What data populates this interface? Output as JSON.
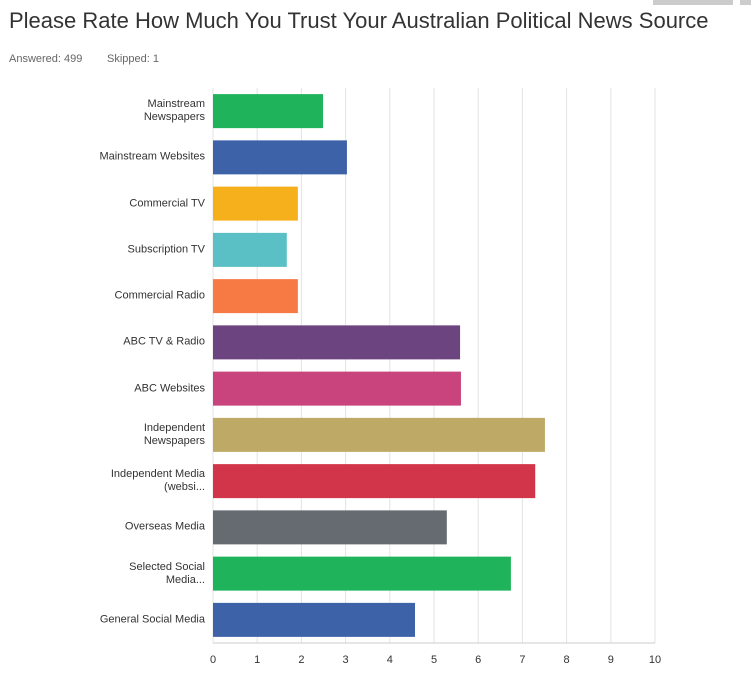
{
  "chart_data": {
    "type": "barh",
    "title": "Please Rate How Much You Trust Your Australian Political News Source",
    "annotations": [
      "Answered: 499",
      "Skipped: 1"
    ],
    "categories": [
      "Mainstream Newspapers",
      "Mainstream Websites",
      "Commercial TV",
      "Subscription TV",
      "Commercial Radio",
      "ABC TV & Radio",
      "ABC Websites",
      "Independent Newspapers",
      "Independent Media (websi...",
      "Overseas Media",
      "Selected Social Media...",
      "General Social Media"
    ],
    "values": [
      2.49,
      3.03,
      1.92,
      1.67,
      1.92,
      5.59,
      5.61,
      7.51,
      7.29,
      5.29,
      6.74,
      4.57
    ],
    "colors": [
      "#1fb35c",
      "#3d62a8",
      "#f5b01b",
      "#5bc0c5",
      "#f77a45",
      "#6c4580",
      "#c9437d",
      "#bea966",
      "#d2354a",
      "#656b70",
      "#1fb35c",
      "#3d62a8"
    ],
    "xlim": [
      0,
      10
    ],
    "xticks": [
      0,
      1,
      2,
      3,
      4,
      5,
      6,
      7,
      8,
      9,
      10
    ],
    "grid": true
  }
}
